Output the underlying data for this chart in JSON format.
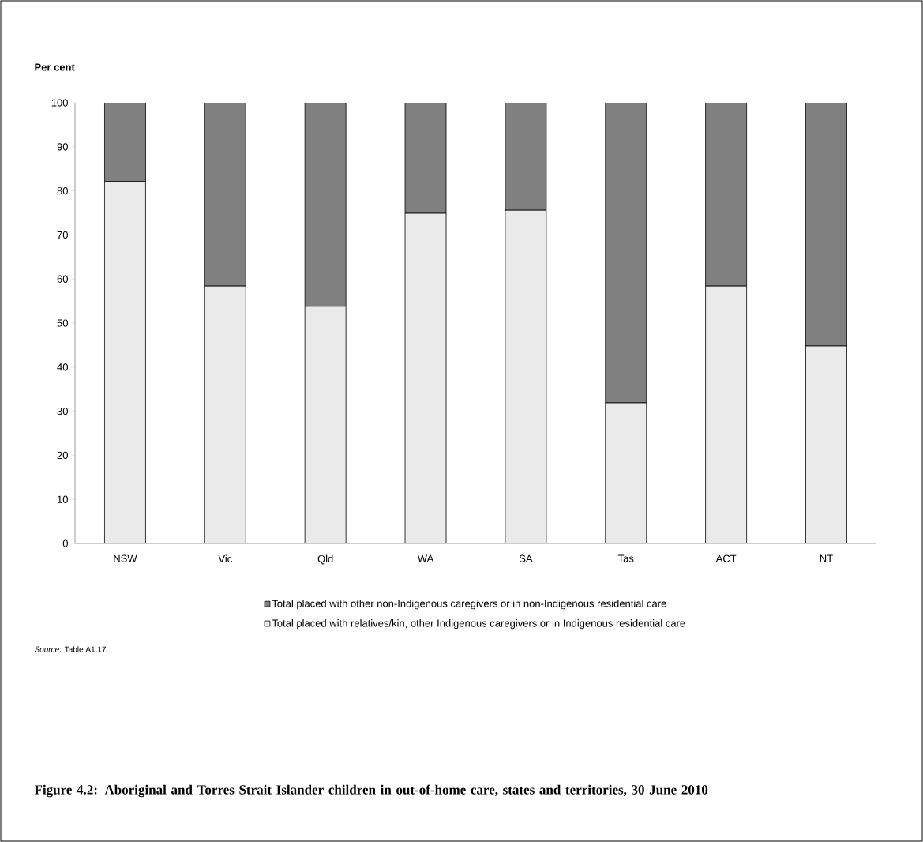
{
  "chart_data": {
    "type": "bar",
    "stacked": true,
    "title": "Figure 4.2: Aboriginal and Torres Strait Islander children in out-of-home care, states and territories, 30 June 2010",
    "ylabel": "Per cent",
    "categories": [
      "NSW",
      "Vic",
      "Qld",
      "WA",
      "SA",
      "Tas",
      "ACT",
      "NT"
    ],
    "series": [
      {
        "name": "Total placed with relatives/kin, other Indigenous caregivers or in Indigenous residential care",
        "color": "#eaeaea",
        "values": [
          82.1,
          58.4,
          53.8,
          74.9,
          75.6,
          31.9,
          58.4,
          44.8
        ]
      },
      {
        "name": "Total placed with other non-Indigenous caregivers or in non-Indigenous residential care",
        "color": "#808080",
        "values": [
          17.9,
          41.6,
          46.2,
          25.1,
          24.4,
          68.1,
          41.6,
          55.2
        ]
      }
    ],
    "ylim": [
      0,
      100
    ],
    "yticks": [
      0,
      10,
      20,
      30,
      40,
      50,
      60,
      70,
      80,
      90,
      100
    ],
    "legend": "bottom",
    "annotations": [
      "*Source*: Table A1.17."
    ]
  }
}
